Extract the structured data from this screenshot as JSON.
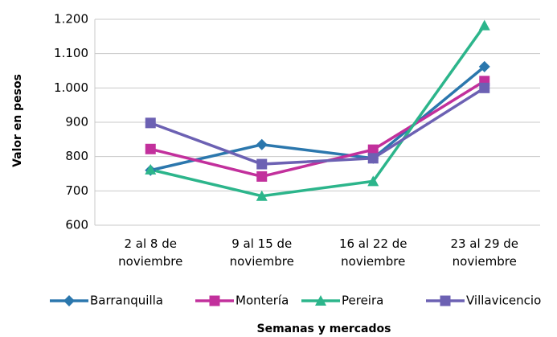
{
  "chart_data": {
    "type": "line",
    "x_label": "Semanas y mercados",
    "y_label": "Valor en pesos",
    "categories": [
      "2 al 8 de noviembre",
      "9 al 15 de noviembre",
      "16 al 22 de noviembre",
      "23 al 29 de noviembre"
    ],
    "series": [
      {
        "name": "Barranquilla",
        "color": "#2b77ad",
        "marker": "diamond",
        "values": [
          760,
          835,
          795,
          1062
        ]
      },
      {
        "name": "Montería",
        "color": "#c2309c",
        "marker": "square",
        "values": [
          822,
          742,
          820,
          1020
        ]
      },
      {
        "name": "Pereira",
        "color": "#2cb58b",
        "marker": "triangle",
        "values": [
          762,
          685,
          728,
          1182
        ]
      },
      {
        "name": "Villavicencio",
        "color": "#6c61b3",
        "marker": "square",
        "values": [
          898,
          778,
          795,
          1000
        ]
      }
    ],
    "ylim": [
      600,
      1200
    ],
    "yticks": [
      600,
      700,
      800,
      900,
      {
        "value": 1000,
        "label": "1.000"
      },
      {
        "value": 1100,
        "label": "1.100"
      },
      {
        "value": 1200,
        "label": "1.200"
      }
    ],
    "grid": true,
    "legend": "bottom"
  }
}
